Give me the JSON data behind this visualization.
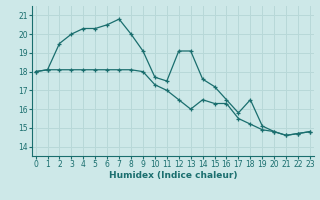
{
  "xlabel": "Humidex (Indice chaleur)",
  "bg_color": "#cde8e8",
  "grid_color": "#b8d8d8",
  "line_color": "#1a6e6e",
  "x_ticks": [
    0,
    1,
    2,
    3,
    4,
    5,
    6,
    7,
    8,
    9,
    10,
    11,
    12,
    13,
    14,
    15,
    16,
    17,
    18,
    19,
    20,
    21,
    22,
    23
  ],
  "y_ticks": [
    14,
    15,
    16,
    17,
    18,
    19,
    20,
    21
  ],
  "xlim": [
    -0.3,
    23.3
  ],
  "ylim": [
    13.5,
    21.5
  ],
  "series1_x": [
    0,
    1,
    2,
    3,
    4,
    5,
    6,
    7,
    8,
    9,
    10,
    11,
    12,
    13,
    14,
    15,
    16,
    17,
    18,
    19,
    20,
    21,
    22,
    23
  ],
  "series1_y": [
    18.0,
    18.1,
    19.5,
    20.0,
    20.3,
    20.3,
    20.5,
    20.8,
    20.0,
    19.1,
    17.7,
    17.5,
    19.1,
    19.1,
    17.6,
    17.2,
    16.5,
    15.8,
    16.5,
    15.1,
    14.8,
    14.6,
    14.7,
    14.8
  ],
  "series2_x": [
    0,
    1,
    2,
    3,
    4,
    5,
    6,
    7,
    8,
    9,
    10,
    11,
    12,
    13,
    14,
    15,
    16,
    17,
    18,
    19,
    20,
    21,
    22,
    23
  ],
  "series2_y": [
    18.0,
    18.1,
    18.1,
    18.1,
    18.1,
    18.1,
    18.1,
    18.1,
    18.1,
    18.0,
    17.3,
    17.0,
    16.5,
    16.0,
    16.5,
    16.3,
    16.3,
    15.5,
    15.2,
    14.9,
    14.8,
    14.6,
    14.7,
    14.8
  ],
  "tick_fontsize": 5.5,
  "xlabel_fontsize": 6.5
}
